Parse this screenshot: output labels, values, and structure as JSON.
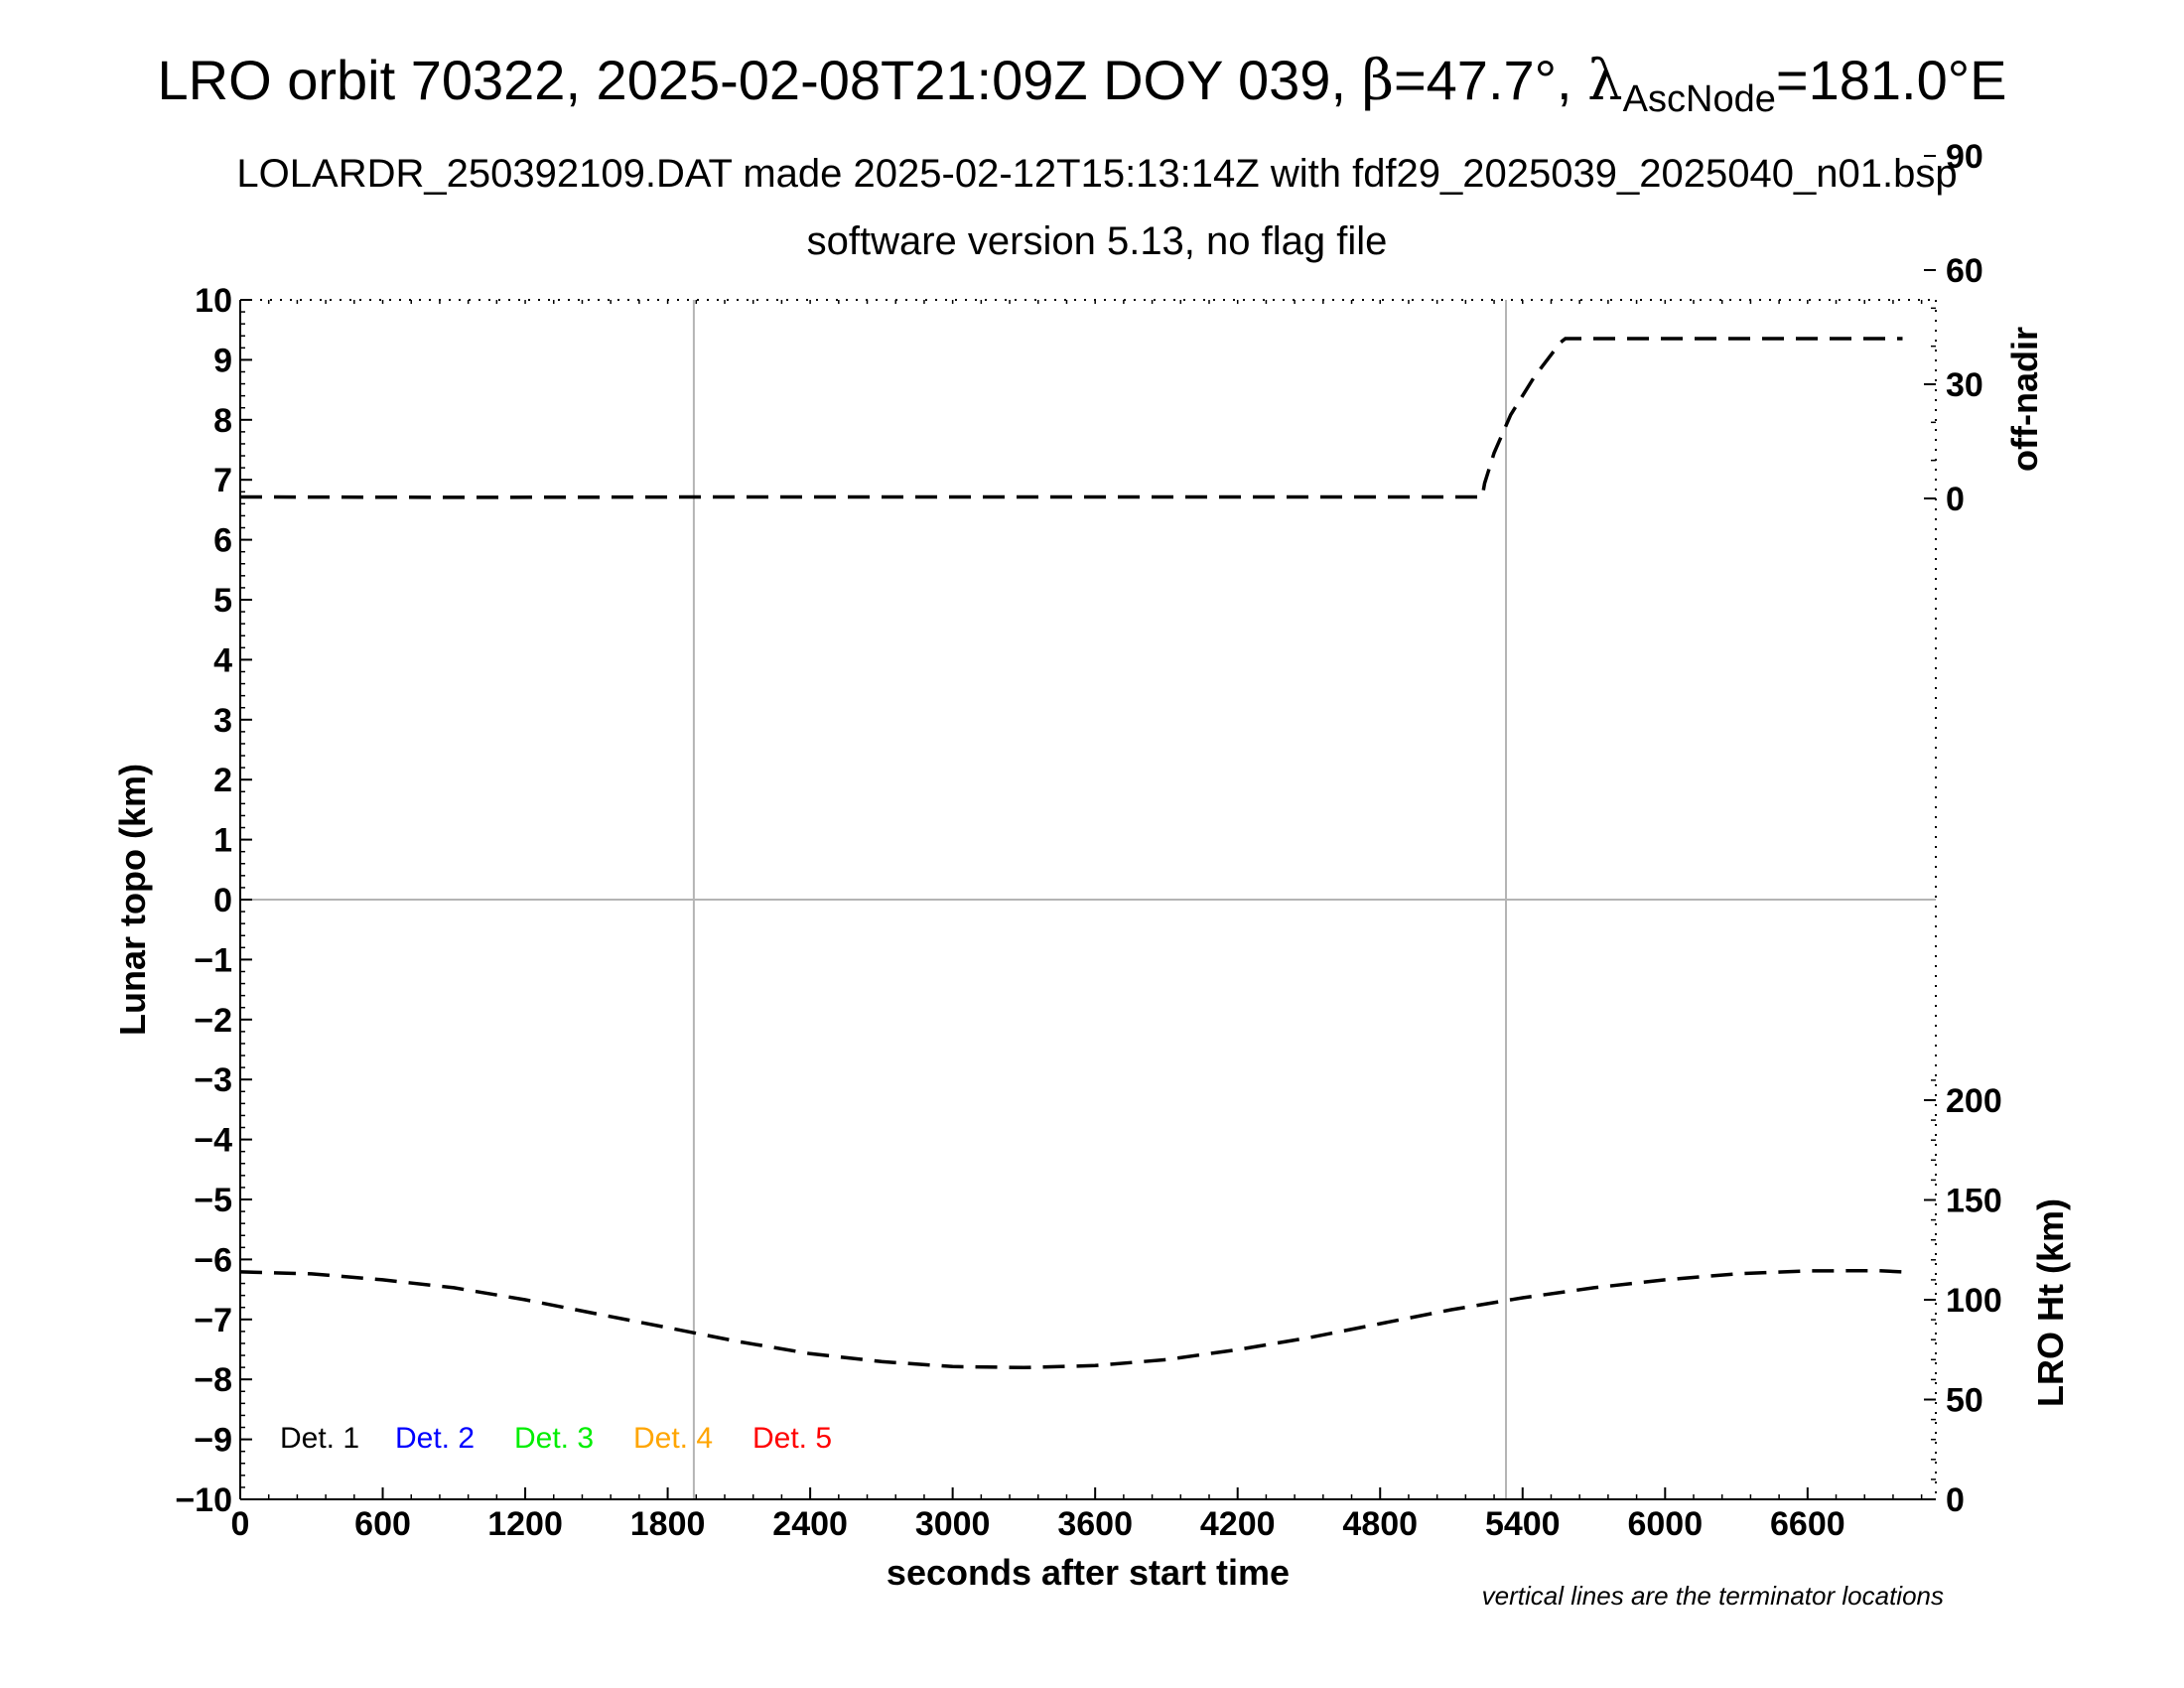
{
  "title": {
    "main_prefix": "LRO orbit 70322, 2025-02-08T21:09Z DOY 039, ",
    "beta_symbol": "β",
    "beta_value": "=47.7°, ",
    "lambda_symbol": "λ",
    "lambda_subscript": "AscNode",
    "lambda_value": "=181.0°E",
    "line2": "LOLARDR_250392109.DAT made 2025-02-12T15:13:14Z with fdf29_2025039_2025040_n01.bsp",
    "line3": "software version 5.13, no flag file"
  },
  "footnote": "vertical lines are the terminator locations",
  "colors": {
    "det1": "#000000",
    "det2": "#0000ff",
    "det3": "#00ee00",
    "det4": "#ffa500",
    "det5": "#ff0000",
    "grid": "#b4b4b4"
  },
  "chart_data": {
    "type": "line",
    "xlabel": "seconds after start time",
    "ylabel": "Lunar topo (km)",
    "y2label_top": "off-nadir",
    "y2label_bottom": "LRO Ht (km)",
    "xlim": [
      0,
      7140
    ],
    "ylim": [
      -10,
      10
    ],
    "x_ticks": [
      0,
      600,
      1200,
      1800,
      2400,
      3000,
      3600,
      4200,
      4800,
      5400,
      6000,
      6600
    ],
    "y_ticks": [
      10,
      9,
      8,
      7,
      6,
      5,
      4,
      3,
      2,
      1,
      0,
      -1,
      -2,
      -3,
      -4,
      -5,
      -6,
      -7,
      -8,
      -9,
      -10
    ],
    "off_nadir_ticks": [
      90,
      60,
      30,
      0
    ],
    "lro_ht_ticks": [
      200,
      150,
      100,
      50,
      0
    ],
    "terminator_lines_x": [
      1910,
      5330
    ],
    "legend": [
      "Det. 1",
      "Det. 2",
      "Det. 3",
      "Det. 4",
      "Det. 5"
    ],
    "series": [
      {
        "name": "off-nadir",
        "axis": "off-nadir",
        "points": [
          [
            0,
            0.4
          ],
          [
            1000,
            0.3
          ],
          [
            2000,
            0.4
          ],
          [
            3000,
            0.4
          ],
          [
            4000,
            0.4
          ],
          [
            5000,
            0.4
          ],
          [
            5230,
            0.4
          ],
          [
            5240,
            4
          ],
          [
            5280,
            12
          ],
          [
            5350,
            22
          ],
          [
            5450,
            32
          ],
          [
            5560,
            41
          ],
          [
            5580,
            42
          ],
          [
            6000,
            42
          ],
          [
            7000,
            42
          ]
        ]
      },
      {
        "name": "LRO Ht (km)",
        "axis": "LRO Ht (km)",
        "points": [
          [
            0,
            114
          ],
          [
            300,
            113
          ],
          [
            600,
            110
          ],
          [
            900,
            106
          ],
          [
            1200,
            100
          ],
          [
            1500,
            93
          ],
          [
            1800,
            86
          ],
          [
            2100,
            79
          ],
          [
            2400,
            73
          ],
          [
            2700,
            69
          ],
          [
            3000,
            66.5
          ],
          [
            3300,
            66
          ],
          [
            3600,
            67
          ],
          [
            3900,
            70
          ],
          [
            4200,
            75
          ],
          [
            4500,
            81
          ],
          [
            4800,
            88
          ],
          [
            5100,
            95
          ],
          [
            5400,
            101
          ],
          [
            5700,
            106
          ],
          [
            6000,
            110
          ],
          [
            6300,
            113
          ],
          [
            6600,
            114.5
          ],
          [
            6900,
            114.6
          ],
          [
            7000,
            114
          ]
        ]
      }
    ]
  }
}
